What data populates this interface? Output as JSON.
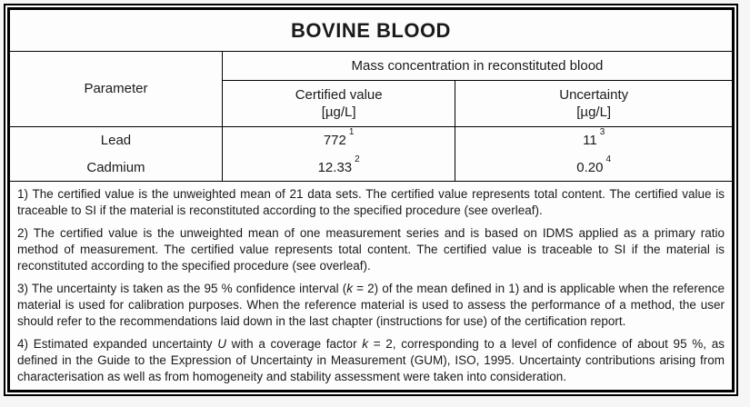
{
  "colors": {
    "border": "#000000",
    "page_background": "#f6f6f6",
    "table_background": "#fdfdfd",
    "text": "#1a1a1a"
  },
  "title": "BOVINE BLOOD",
  "table": {
    "parameter_header": "Parameter",
    "group_header": "Mass concentration in reconstituted blood",
    "certified_header": "Certified value",
    "certified_unit": "[µg/L]",
    "uncertainty_header": "Uncertainty",
    "uncertainty_unit": "[µg/L]",
    "rows": [
      {
        "parameter": "Lead",
        "certified_value": "772",
        "certified_note": "1",
        "uncertainty": "11",
        "uncertainty_note": "3"
      },
      {
        "parameter": "Cadmium",
        "certified_value": "12.33",
        "certified_note": "2",
        "uncertainty": "0.20",
        "uncertainty_note": "4"
      }
    ]
  },
  "footnotes": {
    "f1": "1) The certified value is the unweighted mean of 21 data sets. The certified value represents total content. The certified value is traceable to SI if the material is reconstituted according to the specified procedure (see overleaf).",
    "f2": "2) The certified value is the unweighted mean of one measurement series and is based on IDMS applied as a primary ratio method of measurement. The certified value represents total content. The certified value is traceable to SI if the material is reconstituted according to the specified procedure (see overleaf).",
    "f3_parts": [
      "3) The uncertainty is taken as the 95 % confidence interval (",
      "k",
      " = 2) of the mean defined in 1) and is applicable when the reference material is used for calibration purposes. When the reference material is used to assess the performance of a method, the user should refer to the recommendations laid down in the last chapter (instructions for use) of the certification report."
    ],
    "f4_parts": [
      "4) Estimated expanded uncertainty ",
      "U",
      " with a coverage factor ",
      "k",
      " = 2, corresponding to a level of confidence of about 95 %, as defined in the Guide to the Expression of Uncertainty in Measurement (GUM), ISO, 1995. Uncertainty contributions arising from characterisation as well as from homogeneity and stability assessment were taken into consideration."
    ]
  }
}
